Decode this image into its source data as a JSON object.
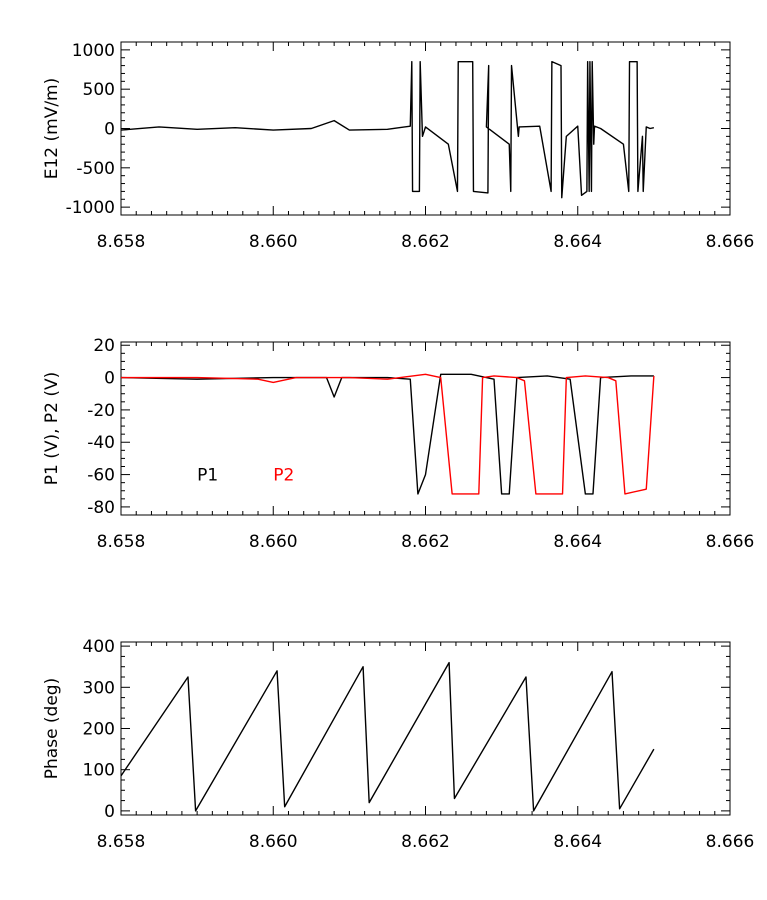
{
  "chart_data": [
    {
      "type": "line",
      "ylabel": "E12 (mV/m)",
      "xlim": [
        8.658,
        8.666
      ],
      "ylim": [
        -1100,
        1100
      ],
      "xticks": [
        "8.658",
        "8.660",
        "8.662",
        "8.664",
        "8.666"
      ],
      "yticks": [
        "1000",
        "500",
        "0",
        "-500",
        "-1000"
      ],
      "series": [
        {
          "color": "#000000",
          "x": [
            8.658,
            8.6585,
            8.659,
            8.6595,
            8.66,
            8.6605,
            8.6608,
            8.661,
            8.6615,
            8.6618,
            8.66182,
            8.66183,
            8.66192,
            8.66193,
            8.66196,
            8.662,
            8.6623,
            8.66242,
            8.66243,
            8.66262,
            8.66263,
            8.66282,
            8.66283,
            8.6628,
            8.6631,
            8.66312,
            8.66313,
            8.66322,
            8.66323,
            8.6635,
            8.66365,
            8.66366,
            8.66378,
            8.66379,
            8.66385,
            8.664,
            8.66405,
            8.66412,
            8.66413,
            8.66415,
            8.66416,
            8.66418,
            8.66419,
            8.66421,
            8.66422,
            8.6643,
            8.6646,
            8.66467,
            8.66468,
            8.66478,
            8.66479,
            8.66485,
            8.66486,
            8.6649,
            8.66495,
            8.665
          ],
          "y": [
            -20,
            20,
            -10,
            10,
            -20,
            0,
            100,
            -20,
            -10,
            30,
            850,
            -800,
            -800,
            850,
            -100,
            20,
            -200,
            -800,
            850,
            850,
            -800,
            -820,
            800,
            20,
            -200,
            -800,
            800,
            -100,
            20,
            30,
            -800,
            850,
            800,
            -880,
            -100,
            30,
            -850,
            -800,
            850,
            -800,
            850,
            -800,
            850,
            -200,
            30,
            0,
            -200,
            -800,
            850,
            850,
            -800,
            -100,
            -800,
            20,
            0,
            10
          ]
        }
      ]
    },
    {
      "type": "line",
      "ylabel": "P1 (V), P2 (V)",
      "xlim": [
        8.658,
        8.666
      ],
      "ylim": [
        -85,
        22
      ],
      "xticks": [
        "8.658",
        "8.660",
        "8.662",
        "8.664",
        "8.666"
      ],
      "yticks": [
        "20",
        "0",
        "-20",
        "-40",
        "-60",
        "-80"
      ],
      "legend": [
        "P1",
        "P2"
      ],
      "series": [
        {
          "name": "P1",
          "color": "#000000",
          "x": [
            8.658,
            8.659,
            8.66,
            8.6605,
            8.6607,
            8.6608,
            8.6609,
            8.6612,
            8.6615,
            8.6618,
            8.6619,
            8.662,
            8.6622,
            8.6626,
            8.6629,
            8.663,
            8.6631,
            8.6632,
            8.6636,
            8.6639,
            8.6641,
            8.6642,
            8.6643,
            8.6647,
            8.665
          ],
          "y": [
            0,
            -1,
            0,
            0,
            0,
            -12,
            0,
            0,
            0,
            -1,
            -72,
            -60,
            2,
            2,
            -1,
            -72,
            -72,
            0,
            1,
            -1,
            -72,
            -72,
            0,
            1,
            1
          ]
        },
        {
          "name": "P2",
          "color": "#ff0000",
          "x": [
            8.658,
            8.659,
            8.6598,
            8.66,
            8.6603,
            8.661,
            8.6615,
            8.662,
            8.6622,
            8.66235,
            8.6627,
            8.66275,
            8.6629,
            8.6632,
            8.6633,
            8.66345,
            8.6638,
            8.66385,
            8.6641,
            8.6644,
            8.6645,
            8.66462,
            8.6649,
            8.665
          ],
          "y": [
            0,
            0,
            -1,
            -3,
            0,
            0,
            -1,
            2,
            0,
            -72,
            -72,
            0,
            1,
            0,
            -2,
            -72,
            -72,
            0,
            1,
            0,
            -2,
            -72,
            -69,
            1
          ]
        }
      ]
    },
    {
      "type": "line",
      "ylabel": "Phase (deg)",
      "xlim": [
        8.658,
        8.666
      ],
      "ylim": [
        -10,
        410
      ],
      "xticks": [
        "8.658",
        "8.660",
        "8.662",
        "8.664",
        "8.666"
      ],
      "yticks": [
        "400",
        "300",
        "200",
        "100",
        "0"
      ],
      "series": [
        {
          "color": "#000000",
          "x": [
            8.658,
            8.65888,
            8.65898,
            8.66005,
            8.66015,
            8.66118,
            8.66126,
            8.66231,
            8.66238,
            8.66332,
            8.66342,
            8.66445,
            8.66455,
            8.665
          ],
          "y": [
            85,
            325,
            0,
            340,
            10,
            350,
            20,
            360,
            30,
            325,
            0,
            338,
            5,
            150
          ]
        }
      ]
    }
  ]
}
